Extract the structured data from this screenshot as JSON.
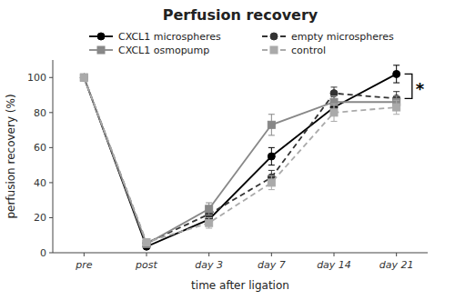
{
  "chart_data": {
    "type": "line",
    "title": "Perfusion recovery",
    "x_label": "time after ligation",
    "y_label": "perfusion recovery (%)",
    "categories": [
      "pre",
      "post",
      "day 3",
      "day 7",
      "day 14",
      "day 21"
    ],
    "series": [
      {
        "name": "CXCL1 microspheres",
        "color": "#000000",
        "line_style": "solid",
        "marker": "circle",
        "values": [
          100,
          3.5,
          19,
          55,
          83,
          102
        ],
        "errors": [
          0,
          0,
          3.5,
          5,
          3.5,
          5
        ]
      },
      {
        "name": "empty microspheres",
        "color": "#333333",
        "line_style": "dashed",
        "marker": "circle",
        "values": [
          100,
          5.5,
          22,
          43,
          91,
          88
        ],
        "errors": [
          0,
          0,
          3.5,
          4,
          3.5,
          4
        ]
      },
      {
        "name": "CXCL1 osmopump",
        "color": "#888888",
        "line_style": "solid",
        "marker": "square",
        "values": [
          100,
          5,
          25,
          73,
          86,
          86
        ],
        "errors": [
          0,
          0,
          3.5,
          6,
          3.5,
          3.5
        ]
      },
      {
        "name": "control",
        "color": "#aaaaaa",
        "line_style": "dashed",
        "marker": "square",
        "values": [
          100,
          6,
          17,
          40,
          80,
          83
        ],
        "errors": [
          0,
          0,
          3,
          4,
          5,
          4
        ]
      }
    ],
    "annotations": [
      {
        "text": "*",
        "y_from": 88,
        "y_to": 102
      }
    ],
    "ylim": [
      0,
      110
    ],
    "yticks": [
      0,
      20,
      40,
      60,
      80,
      100
    ],
    "grid": false,
    "legend": "top"
  }
}
